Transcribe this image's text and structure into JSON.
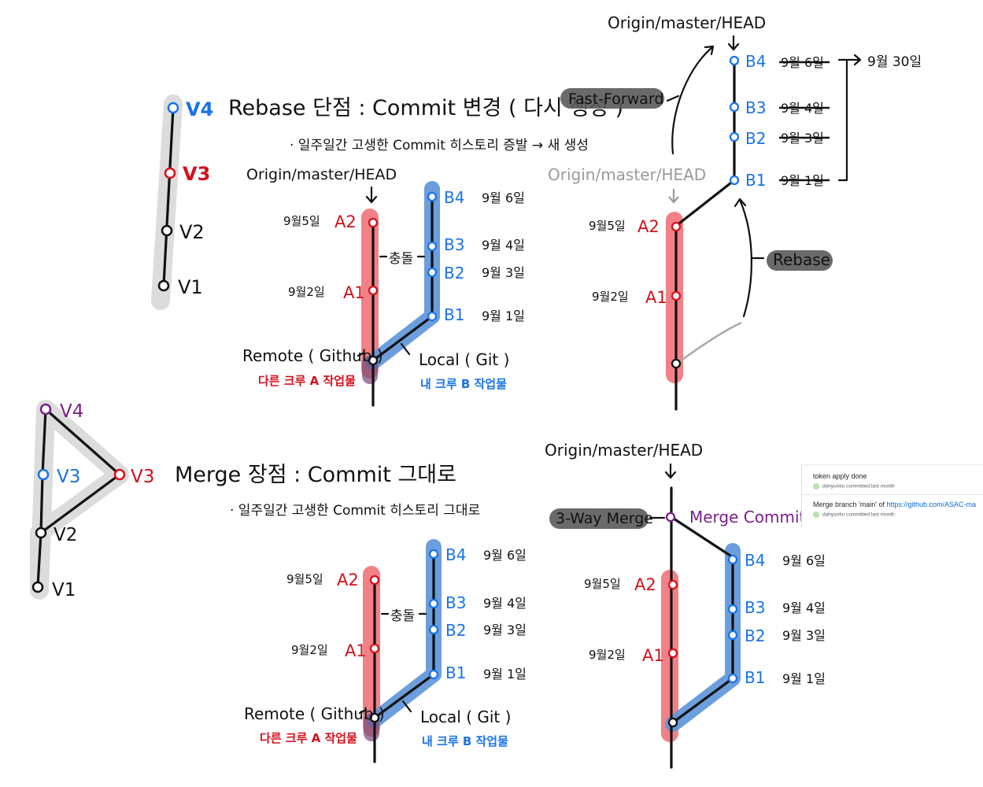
{
  "version_chain_top": {
    "v4": "V4",
    "v3": "V3",
    "v2": "V2",
    "v1": "V1"
  },
  "version_chain_bottom": {
    "v4": "V4",
    "v3_left": "V3",
    "v3_right": "V3",
    "v2": "V2",
    "v1": "V1"
  },
  "rebase_section": {
    "title": "Rebase 단점 : Commit 변경 ( 다시 생성 )",
    "bullet": "· 일주일간 고생한 Commit 히스토리 증발 → 새 생성",
    "head_label": "Origin/master/HEAD",
    "remote_label": "Remote ( Github )",
    "remote_sub": "다른 크루 A 작업물",
    "local_label": "Local ( Git )",
    "local_sub": "내 크루 B 작업물",
    "conflict": "충돌",
    "a2": "A2",
    "a1": "A1",
    "a2_date": "9월5일",
    "a1_date": "9월2일",
    "b4": "B4",
    "b3": "B3",
    "b2": "B2",
    "b1": "B1",
    "b4_date": "9월 6일",
    "b3_date": "9월 4일",
    "b2_date": "9월 3일",
    "b1_date": "9월 1일"
  },
  "rebase_result": {
    "head_top": "Origin/master/HEAD",
    "head_old": "Origin/master/HEAD",
    "fast_forward": "Fast-Forward",
    "rebase": "Rebase",
    "a2": "A2",
    "a1": "A1",
    "a2_date": "9월5일",
    "a1_date": "9월2일",
    "b4": "B4",
    "b3": "B3",
    "b2": "B2",
    "b1": "B1",
    "b4_date": "9월 6일",
    "b3_date": "9월 4일",
    "b2_date": "9월 3일",
    "b1_date": "9월 1일",
    "new_date": "9월 30일"
  },
  "merge_section": {
    "title": "Merge 장점 : Commit 그대로",
    "bullet": "· 일주일간 고생한 Commit 히스토리 그대로",
    "remote_label": "Remote ( Github )",
    "remote_sub": "다른 크루 A 작업물",
    "local_label": "Local ( Git )",
    "local_sub": "내 크루 B 작업물",
    "conflict": "충돌",
    "a2": "A2",
    "a1": "A1",
    "a2_date": "9월5일",
    "a1_date": "9월2일",
    "b4": "B4",
    "b3": "B3",
    "b2": "B2",
    "b1": "B1",
    "b4_date": "9월 6일",
    "b3_date": "9월 4일",
    "b2_date": "9월 3일",
    "b1_date": "9월 1일"
  },
  "merge_result": {
    "head": "Origin/master/HEAD",
    "three_way": "3-Way Merge",
    "merge_commit": "Merge Commit",
    "a2": "A2",
    "a1": "A1",
    "a2_date": "9월5일",
    "a1_date": "9월2일",
    "b4": "B4",
    "b3": "B3",
    "b2": "B2",
    "b1": "B1",
    "b4_date": "9월 6일",
    "b3_date": "9월 4일",
    "b2_date": "9월 3일",
    "b1_date": "9월 1일"
  },
  "github_snippet": {
    "commit1_title": "token apply done",
    "commit1_meta": "dahyunko committed last month",
    "commit2_prefix": "Merge branch 'main' of ",
    "commit2_link": "https://github.com/ASAC-ma",
    "commit2_meta": "dahyunko committed last month"
  },
  "colors": {
    "remote_red": "#d6101c",
    "local_blue": "#1a73e8",
    "merge_purple": "#7b1f8a",
    "band_red": "#f07a80",
    "band_blue": "#5b93d8",
    "band_gray": "#dcdcdc"
  }
}
